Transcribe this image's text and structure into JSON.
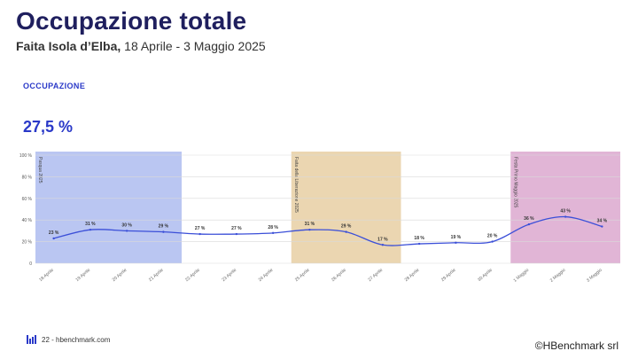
{
  "header": {
    "title": "Occupazione totale",
    "subtitle_bold": "Faita Isola d’Elba,",
    "subtitle_rest": " 18 Aprile - 3 Maggio 2025"
  },
  "metric": {
    "label": "OCCUPAZIONE",
    "value": "27,5 %"
  },
  "footer": {
    "page": "22 - hbenchmark.com",
    "copyright": "©HBenchmark srl"
  },
  "chart_data": {
    "type": "line",
    "x": [
      "18 Aprile",
      "19 Aprile",
      "20 Aprile",
      "21 Aprile",
      "22 Aprile",
      "23 Aprile",
      "24 Aprile",
      "25 Aprile",
      "26 Aprile",
      "27 Aprile",
      "28 Aprile",
      "29 Aprile",
      "30 Aprile",
      "1 Maggio",
      "2 Maggio",
      "3 Maggio"
    ],
    "series": [
      {
        "values": [
          23,
          31,
          30,
          29,
          27,
          27,
          28,
          31,
          29,
          17,
          18,
          19,
          20,
          36,
          43,
          34
        ],
        "labels": [
          "23 %",
          "31 %",
          "30 %",
          "29 %",
          "27 %",
          "27 %",
          "28 %",
          "31 %",
          "29 %",
          "17 %",
          "18 %",
          "19 %",
          "20 %",
          "36 %",
          "43 %",
          "34 %"
        ],
        "color": "#3b4fd8"
      }
    ],
    "ylim": [
      0,
      100
    ],
    "yticks": [
      0,
      20,
      40,
      60,
      80,
      100
    ],
    "ytick_labels": [
      "0",
      "20 %",
      "40 %",
      "60 %",
      "80 %",
      "100 %"
    ],
    "grid": true,
    "bands": [
      {
        "label": "Pasqua 2025",
        "from": "18 Aprile",
        "to": "21 Aprile",
        "color": "#aebcf0"
      },
      {
        "label": "Faita della Liberazione 2025",
        "from": "25 Aprile",
        "to": "27 Aprile",
        "color": "#e8cfa3"
      },
      {
        "label": "Festa Primo Maggio 2025",
        "from": "1 Maggio",
        "to": "3 Maggio",
        "color": "#dca8cf"
      }
    ]
  }
}
